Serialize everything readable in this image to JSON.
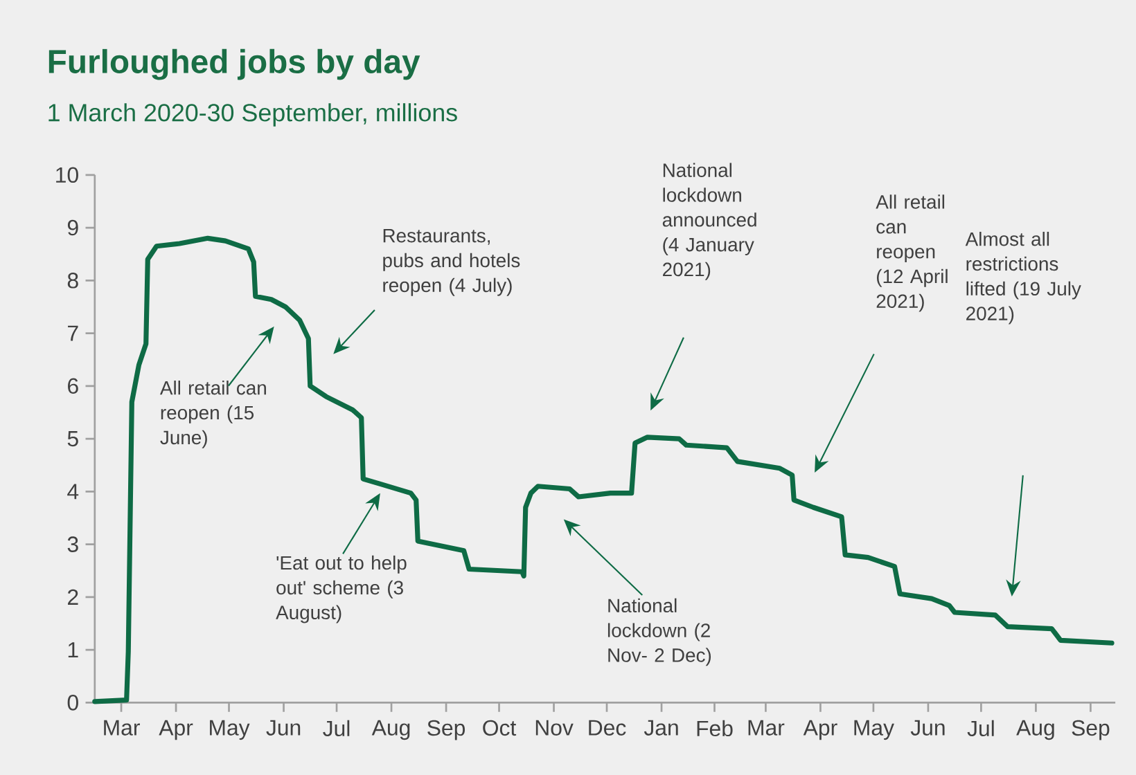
{
  "chart_data": {
    "type": "line",
    "title": "Furloughed jobs by day",
    "subtitle": "1 March 2020-30 September, millions",
    "color": "#0e6b45",
    "x": [
      "2020-03-01",
      "2020-03-19",
      "2020-03-20",
      "2020-03-22",
      "2020-03-26",
      "2020-03-30",
      "2020-03-31",
      "2020-04-05",
      "2020-04-18",
      "2020-05-04",
      "2020-05-14",
      "2020-05-27",
      "2020-05-30",
      "2020-05-31",
      "2020-06-09",
      "2020-06-17",
      "2020-06-25",
      "2020-06-30",
      "2020-07-01",
      "2020-07-10",
      "2020-07-25",
      "2020-07-30",
      "2020-07-31",
      "2020-08-10",
      "2020-08-27",
      "2020-08-30",
      "2020-08-31",
      "2020-09-26",
      "2020-09-29",
      "2020-10-29",
      "2020-10-30",
      "2020-10-31",
      "2020-11-03",
      "2020-11-07",
      "2020-11-25",
      "2020-11-30",
      "2020-12-18",
      "2020-12-30",
      "2021-01-01",
      "2021-01-08",
      "2021-01-26",
      "2021-01-30",
      "2021-02-22",
      "2021-02-28",
      "2021-03-24",
      "2021-03-31",
      "2021-04-01",
      "2021-04-12",
      "2021-04-28",
      "2021-04-30",
      "2021-05-13",
      "2021-05-28",
      "2021-05-31",
      "2021-06-18",
      "2021-06-28",
      "2021-07-01",
      "2021-07-24",
      "2021-07-31",
      "2021-08-25",
      "2021-08-30",
      "2021-09-28"
    ],
    "values": [
      0.02,
      0.05,
      0.97,
      5.7,
      6.4,
      6.8,
      8.4,
      8.65,
      8.7,
      8.8,
      8.75,
      8.6,
      8.35,
      7.7,
      7.64,
      7.5,
      7.25,
      6.9,
      6.0,
      5.8,
      5.55,
      5.4,
      4.24,
      4.14,
      3.97,
      3.84,
      3.06,
      2.88,
      2.53,
      2.48,
      2.4,
      3.7,
      3.97,
      4.1,
      4.05,
      3.9,
      3.97,
      3.97,
      4.92,
      5.03,
      5.0,
      4.88,
      4.83,
      4.57,
      4.44,
      4.31,
      3.84,
      3.7,
      3.52,
      2.8,
      2.75,
      2.58,
      2.06,
      1.97,
      1.84,
      1.71,
      1.66,
      1.44,
      1.4,
      1.18,
      1.13
    ],
    "xlim": [
      "2020-03-01",
      "2021-09-30"
    ],
    "xticks": [
      {
        "value": "2020-03-16",
        "label": "Mar"
      },
      {
        "value": "2020-04-16",
        "label": "Apr"
      },
      {
        "value": "2020-05-16",
        "label": "May"
      },
      {
        "value": "2020-06-16",
        "label": "Jun"
      },
      {
        "value": "2020-07-16",
        "label": "Jul"
      },
      {
        "value": "2020-08-16",
        "label": "Aug"
      },
      {
        "value": "2020-09-16",
        "label": "Sep"
      },
      {
        "value": "2020-10-16",
        "label": "Oct"
      },
      {
        "value": "2020-11-16",
        "label": "Nov"
      },
      {
        "value": "2020-12-16",
        "label": "Dec"
      },
      {
        "value": "2021-01-16",
        "label": "Jan"
      },
      {
        "value": "2021-02-15",
        "label": "Feb"
      },
      {
        "value": "2021-03-16",
        "label": "Mar"
      },
      {
        "value": "2021-04-16",
        "label": "Apr"
      },
      {
        "value": "2021-05-16",
        "label": "May"
      },
      {
        "value": "2021-06-16",
        "label": "Jun"
      },
      {
        "value": "2021-07-16",
        "label": "Jul"
      },
      {
        "value": "2021-08-16",
        "label": "Aug"
      },
      {
        "value": "2021-09-16",
        "label": "Sep"
      }
    ],
    "ylim": [
      0,
      10
    ],
    "yticks": [
      0,
      1,
      2,
      3,
      4,
      5,
      6,
      7,
      8,
      9,
      10
    ],
    "annotations": [
      "All retail can reopen (15 June)",
      "Restaurants, pubs and hotels reopen (4 July)",
      "'Eat out to help out' scheme (3 August)",
      "National lockdown (2 Nov- 2 Dec)",
      "National lockdown announced (4 January 2021)",
      "All retail can reopen (12 April 2021)",
      "Almost all restrictions lifted (19 July 2021)"
    ]
  }
}
